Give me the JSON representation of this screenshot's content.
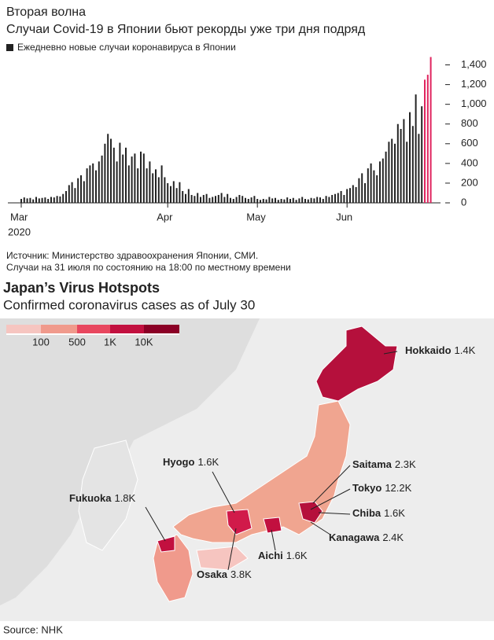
{
  "chart_data": {
    "type": "bar",
    "title": "Вторая волна",
    "subtitle": "Случаи Covid-19 в Японии бьют рекорды уже три дня подряд",
    "legend_label": "Ежедневно новые случаи коронавируса в Японии",
    "year_label": "2020",
    "source": [
      "Источник: Министерство здравоохранения Японии, СМИ.",
      "Случаи на 31 июля по состоянию на 18:00 по местному времени"
    ],
    "categories": [
      "Mar",
      null,
      null,
      null,
      null,
      null,
      null,
      null,
      null,
      null,
      null,
      null,
      null,
      null,
      null,
      null,
      null,
      null,
      null,
      null,
      null,
      null,
      null,
      null,
      null,
      null,
      null,
      null,
      null,
      null,
      null,
      null,
      null,
      null,
      null,
      null,
      null,
      null,
      null,
      null,
      null,
      null,
      null,
      null,
      null,
      null,
      null,
      null,
      null,
      "Apr",
      null,
      null,
      null,
      null,
      null,
      null,
      null,
      null,
      null,
      null,
      null,
      null,
      null,
      null,
      null,
      null,
      null,
      null,
      null,
      null,
      null,
      null,
      null,
      null,
      null,
      null,
      null,
      null,
      null,
      "May",
      null,
      null,
      null,
      null,
      null,
      null,
      null,
      null,
      null,
      null,
      null,
      null,
      null,
      null,
      null,
      null,
      null,
      null,
      null,
      null,
      null,
      null,
      null,
      null,
      null,
      null,
      null,
      null,
      null,
      "Jun",
      null,
      null,
      null,
      null,
      null,
      null,
      null,
      null,
      null,
      null,
      null,
      null,
      null,
      null,
      null,
      null,
      null,
      null,
      null,
      null,
      null,
      null,
      null,
      null,
      null,
      null,
      null,
      null
    ],
    "values": [
      40,
      55,
      45,
      50,
      35,
      60,
      45,
      50,
      55,
      40,
      60,
      55,
      70,
      65,
      90,
      120,
      180,
      210,
      150,
      250,
      280,
      220,
      350,
      380,
      400,
      330,
      420,
      480,
      600,
      700,
      650,
      560,
      420,
      610,
      490,
      560,
      380,
      470,
      500,
      350,
      520,
      500,
      350,
      420,
      300,
      340,
      260,
      380,
      260,
      200,
      170,
      220,
      150,
      210,
      120,
      90,
      140,
      80,
      70,
      100,
      60,
      80,
      90,
      50,
      60,
      70,
      80,
      100,
      60,
      90,
      50,
      40,
      60,
      80,
      70,
      50,
      40,
      55,
      70,
      40,
      30,
      40,
      35,
      60,
      45,
      50,
      30,
      40,
      35,
      55,
      40,
      50,
      30,
      45,
      60,
      40,
      35,
      50,
      45,
      60,
      55,
      40,
      70,
      60,
      80,
      90,
      100,
      120,
      80,
      140,
      150,
      180,
      160,
      250,
      300,
      200,
      350,
      400,
      330,
      280,
      420,
      450,
      520,
      620,
      650,
      600,
      800,
      750,
      850,
      620,
      920,
      780,
      1100,
      700,
      980,
      1250,
      1300,
      1480
    ],
    "color": "#222222",
    "highlight_color": "#e0245e",
    "highlighted": [
      135,
      136,
      137
    ],
    "ylim": [
      0,
      1500
    ],
    "yticks": [
      0,
      200,
      400,
      600,
      800,
      {
        "value": 1000,
        "label": "1,000"
      },
      {
        "value": 1200,
        "label": "1,200"
      },
      {
        "value": 1400,
        "label": "1,400"
      }
    ]
  },
  "map": {
    "title": "Japan’s Virus Hotspots",
    "subtitle": "Confirmed coronavirus cases as of July 30",
    "legend": [
      "100",
      "500",
      "1K",
      "10K"
    ],
    "regions": [
      {
        "name": "Hokkaido",
        "value": "1.4K"
      },
      {
        "name": "Saitama",
        "value": "2.3K"
      },
      {
        "name": "Tokyo",
        "value": "12.2K"
      },
      {
        "name": "Chiba",
        "value": "1.6K"
      },
      {
        "name": "Kanagawa",
        "value": "2.4K"
      },
      {
        "name": "Aichi",
        "value": "1.6K"
      },
      {
        "name": "Osaka",
        "value": "3.8K"
      },
      {
        "name": "Hyogo",
        "value": "1.6K"
      },
      {
        "name": "Fukuoka",
        "value": "1.8K"
      }
    ],
    "source": "Source: NHK"
  }
}
